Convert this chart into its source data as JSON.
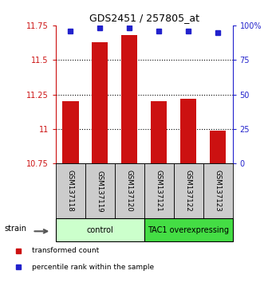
{
  "title": "GDS2451 / 257805_at",
  "samples": [
    "GSM137118",
    "GSM137119",
    "GSM137120",
    "GSM137121",
    "GSM137122",
    "GSM137123"
  ],
  "bar_values": [
    11.2,
    11.63,
    11.68,
    11.2,
    11.22,
    10.99
  ],
  "percentile_values": [
    96,
    98,
    98,
    96,
    96,
    95
  ],
  "bar_color": "#cc1111",
  "dot_color": "#2222cc",
  "ylim_left": [
    10.75,
    11.75
  ],
  "ylim_right": [
    0,
    100
  ],
  "yticks_left": [
    10.75,
    11.0,
    11.25,
    11.5,
    11.75
  ],
  "yticks_right": [
    0,
    25,
    50,
    75,
    100
  ],
  "ytick_labels_left": [
    "10.75",
    "11",
    "11.25",
    "11.5",
    "11.75"
  ],
  "ytick_labels_right": [
    "0",
    "25",
    "50",
    "75",
    "100%"
  ],
  "groups": [
    {
      "label": "control",
      "indices": [
        0,
        1,
        2
      ],
      "color": "#ccffcc"
    },
    {
      "label": "TAC1 overexpressing",
      "indices": [
        3,
        4,
        5
      ],
      "color": "#44dd44"
    }
  ],
  "strain_label": "strain",
  "legend_red": "transformed count",
  "legend_blue": "percentile rank within the sample",
  "sample_box_color": "#cccccc",
  "bar_width": 0.55
}
